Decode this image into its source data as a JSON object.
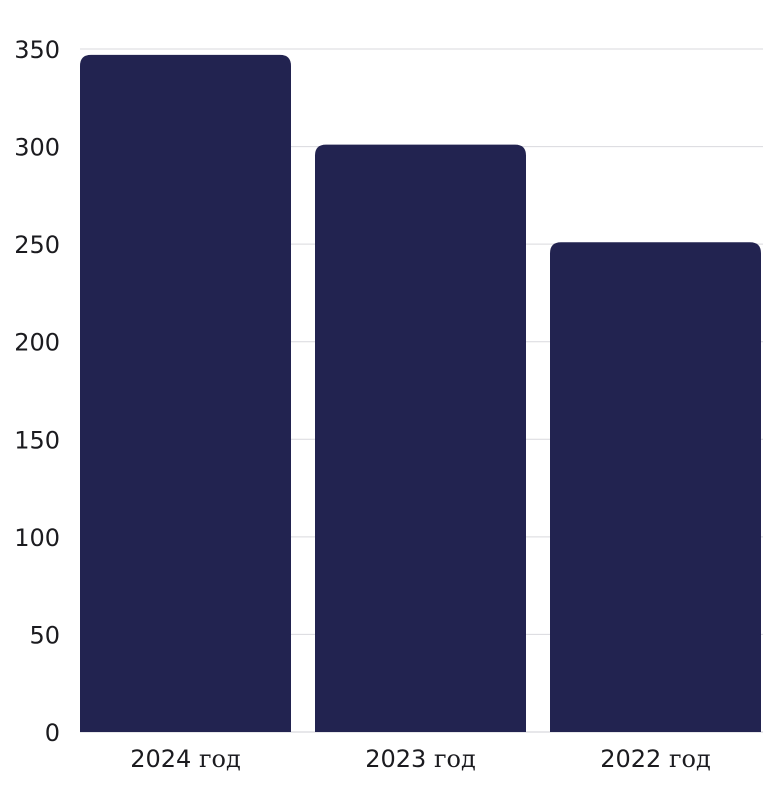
{
  "chart_data": {
    "type": "bar",
    "categories": [
      "2024 год",
      "2023 год",
      "2022 год"
    ],
    "category_parts": [
      {
        "year": "2024",
        "unit": "год"
      },
      {
        "year": "2023",
        "unit": "год"
      },
      {
        "year": "2022",
        "unit": "год"
      }
    ],
    "values": [
      347,
      301,
      251
    ],
    "ylim": [
      0,
      350
    ],
    "yticks": [
      0,
      50,
      100,
      150,
      200,
      250,
      300,
      350
    ],
    "grid": true,
    "legend": "none",
    "title": "",
    "xlabel": "",
    "ylabel": "",
    "colors": {
      "bar": "#222350"
    }
  }
}
